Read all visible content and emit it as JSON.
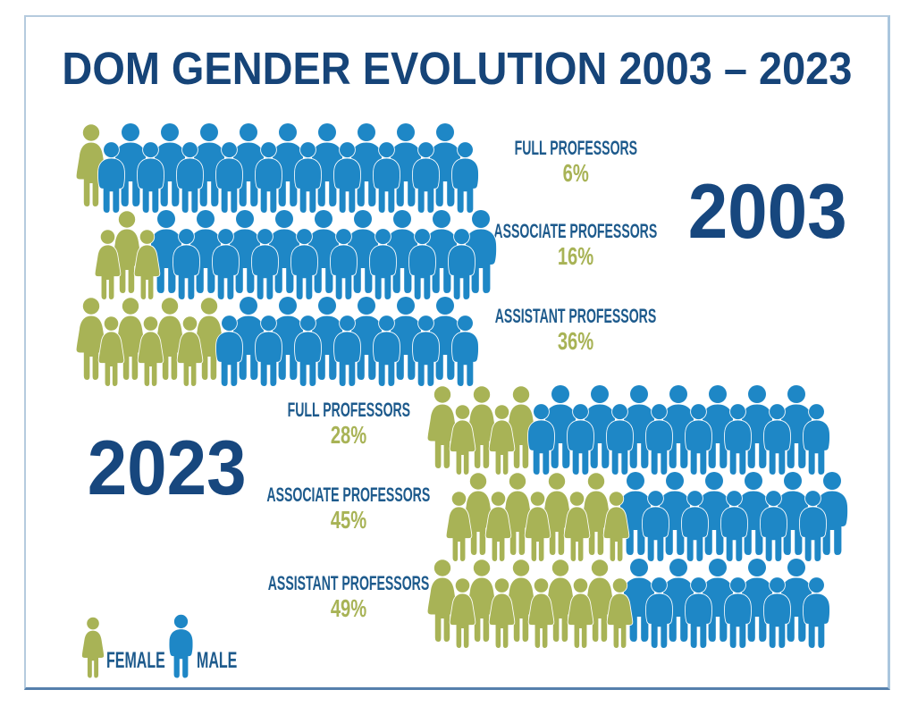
{
  "title": "DOM GENDER EVOLUTION 2003 – 2023",
  "legend": {
    "female_label": "FEMALE",
    "male_label": "MALE"
  },
  "colors": {
    "female_green": "#a8b356",
    "male_blue": "#1e87c6",
    "title_navy": "#164478",
    "label_navy": "#1d5a8c",
    "year_navy": "#17477e",
    "frame_border": "#b5cbde"
  },
  "chart_data": {
    "type": "pictogram",
    "title": "DOM GENDER EVOLUTION 2003 – 2023",
    "unit": "percent female",
    "legend": [
      {
        "label": "FEMALE",
        "color": "#a8b356"
      },
      {
        "label": "MALE",
        "color": "#1e87c6"
      }
    ],
    "groups": [
      {
        "year": "2003",
        "rows": [
          {
            "category": "FULL PROFESSORS",
            "female_pct": 6,
            "icons_total": 20,
            "icons_female": 1,
            "start": "back"
          },
          {
            "category": "ASSOCIATE PROFESSORS",
            "female_pct": 16,
            "icons_total": 20,
            "icons_female": 3,
            "start": "front"
          },
          {
            "category": "ASSISTANT PROFESSORS",
            "female_pct": 36,
            "icons_total": 20,
            "icons_female": 7,
            "start": "back"
          }
        ]
      },
      {
        "year": "2023",
        "rows": [
          {
            "category": "FULL PROFESSORS",
            "female_pct": 28,
            "icons_total": 20,
            "icons_female": 5,
            "start": "back"
          },
          {
            "category": "ASSOCIATE PROFESSORS",
            "female_pct": 45,
            "icons_total": 20,
            "icons_female": 9,
            "start": "front"
          },
          {
            "category": "ASSISTANT PROFESSORS",
            "female_pct": 49,
            "icons_total": 20,
            "icons_female": 10,
            "start": "back"
          }
        ]
      }
    ]
  }
}
